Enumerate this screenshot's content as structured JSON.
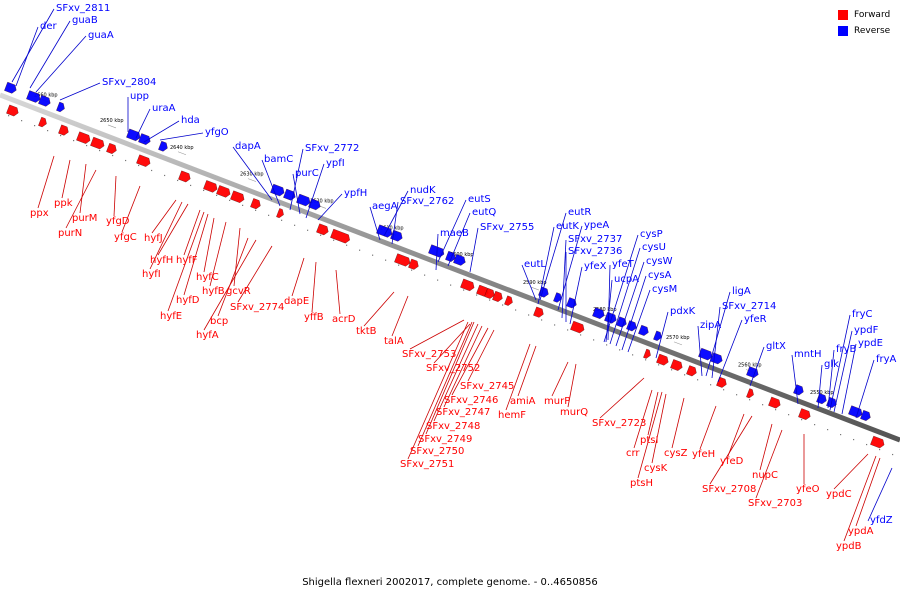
{
  "legend": {
    "forward": {
      "label": "Forward",
      "color": "#ff0000"
    },
    "reverse": {
      "label": "Reverse",
      "color": "#0000ff"
    }
  },
  "caption": "Shigella flexneri 2002017, complete genome. - 0..4650856",
  "tick_labels": [
    "2660 kbp",
    "2650 kbp",
    "2640 kbp",
    "2630 kbp",
    "2620 kbp",
    "2610 kbp",
    "2600 kbp",
    "2590 kbp",
    "2580 kbp",
    "2570 kbp",
    "2560 kbp",
    "2550 kbp"
  ],
  "reverse_genes": [
    "SFxv_2811",
    "der",
    "guaB",
    "guaA",
    "SFxv_2804",
    "upp",
    "uraA",
    "hda",
    "yfgO",
    "dapA",
    "bamC",
    "SFxv_2772",
    "purC",
    "ypfI",
    "ypfH",
    "nudK",
    "aegA",
    "SFxv_2762",
    "eutS",
    "eutQ",
    "maeB",
    "SFxv_2755",
    "eutR",
    "eutK",
    "ypeA",
    "SFxv_2737",
    "SFxv_2736",
    "eutL",
    "yfeX",
    "cysP",
    "yfeT",
    "cysU",
    "cysW",
    "ucpA",
    "cysA",
    "cysM",
    "pdxK",
    "ligA",
    "SFxv_2714",
    "zipA",
    "yfeR",
    "gltX",
    "mntH",
    "fryC",
    "ypdF",
    "fryB",
    "ypdE",
    "glk",
    "fryA",
    "yfdZ"
  ],
  "forward_genes": [
    "ppx",
    "ppk",
    "purM",
    "purN",
    "yfgD",
    "yfgC",
    "hyfJ",
    "hyfH",
    "hyfI",
    "hyfF",
    "hyfC",
    "hyfB",
    "gcvR",
    "hyfD",
    "hyfE",
    "bcp",
    "hyfA",
    "SFxv_2774",
    "dapE",
    "yffB",
    "acrD",
    "tktB",
    "talA",
    "SFxv_2753",
    "SFxv_2752",
    "SFxv_2745",
    "SFxv_2746",
    "SFxv_2747",
    "SFxv_2748",
    "SFxv_2749",
    "SFxv_2750",
    "SFxv_2751",
    "amiA",
    "hemF",
    "murP",
    "murQ",
    "SFxv_2723",
    "ptsI",
    "crr",
    "cysK",
    "ptsH",
    "cysZ",
    "yfeH",
    "yfeD",
    "SFxv_2708",
    "nupC",
    "SFxv_2703",
    "yfeO",
    "ypdC",
    "ypdA",
    "ypdB"
  ]
}
